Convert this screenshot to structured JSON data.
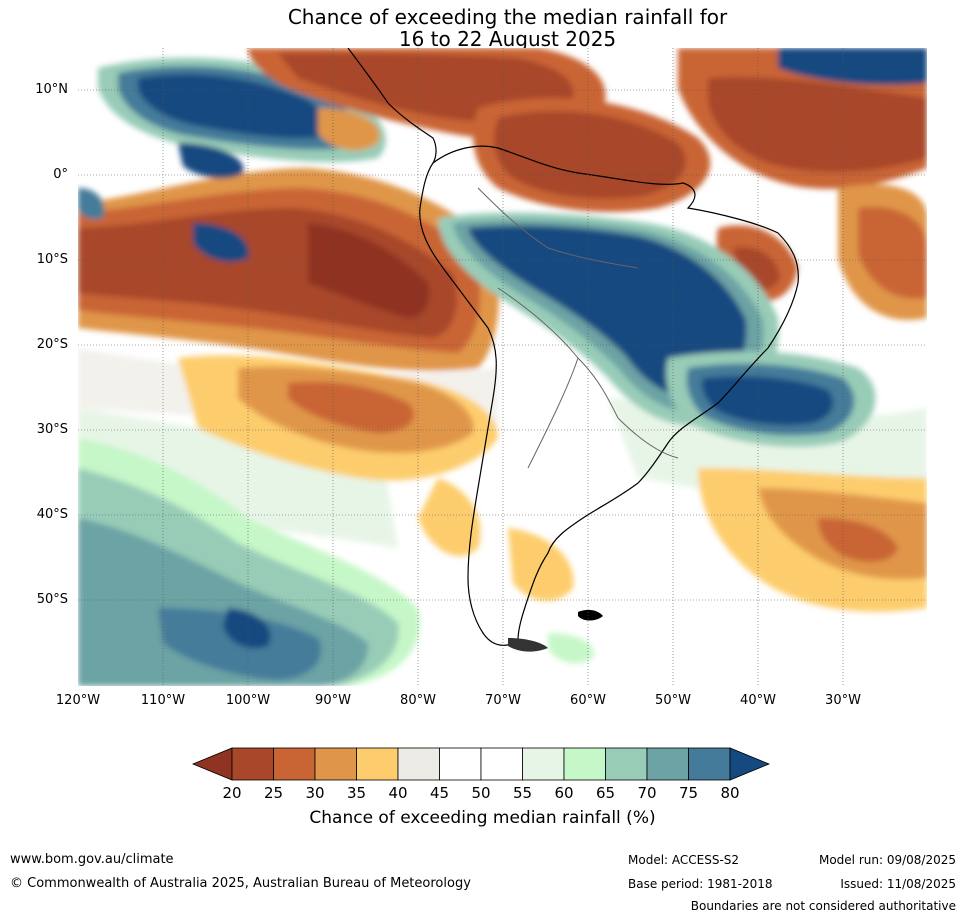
{
  "title_line1": "Chance of exceeding the median rainfall for",
  "title_line2": "16 to 22 August 2025",
  "lat_labels": [
    "10°N",
    "0°",
    "10°S",
    "20°S",
    "30°S",
    "40°S",
    "50°S"
  ],
  "lon_labels": [
    "120°W",
    "110°W",
    "100°W",
    "90°W",
    "80°W",
    "70°W",
    "60°W",
    "50°W",
    "40°W",
    "30°W"
  ],
  "colorbar": {
    "ticks": [
      "20",
      "25",
      "30",
      "35",
      "40",
      "45",
      "50",
      "55",
      "60",
      "65",
      "70",
      "75",
      "80"
    ],
    "colors": [
      "#a8472a",
      "#c96535",
      "#e0964a",
      "#fdcd6d",
      "#edebe6",
      "#ffffff",
      "#ffffff",
      "#e7f5e7",
      "#c6f7c8",
      "#98ccb7",
      "#6ca3a4",
      "#457b9a"
    ],
    "under_color": "#8f3322",
    "over_color": "#144a80",
    "label": "Chance of exceeding median rainfall (%)"
  },
  "footer": {
    "url": "www.bom.gov.au/climate",
    "copyright": "© Commonwealth of Australia 2025, Australian Bureau of Meteorology",
    "model": "Model: ACCESS-S2",
    "base_period": "Base period: 1981-2018",
    "model_run": "Model run: 09/08/2025",
    "issued": "Issued: 11/08/2025",
    "disclaimer": "Boundaries are not considered authoritative"
  }
}
